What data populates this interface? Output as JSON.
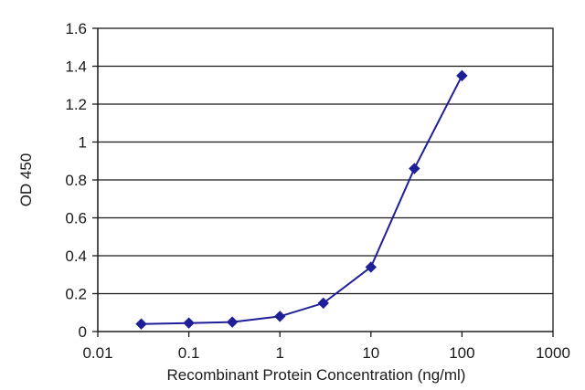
{
  "chart_data": {
    "type": "line",
    "xlabel": "Recombinant Protein Concentration (ng/ml)",
    "ylabel": "OD 450",
    "xscale": "log",
    "xlim": [
      0.01,
      1000
    ],
    "ylim": [
      0,
      1.6
    ],
    "x_ticks": [
      0.01,
      0.1,
      1,
      10,
      100,
      1000
    ],
    "x_tick_labels": [
      "0.01",
      "0.1",
      "1",
      "10",
      "100",
      "1000"
    ],
    "y_ticks": [
      0,
      0.2,
      0.4,
      0.6,
      0.8,
      1,
      1.2,
      1.4,
      1.6
    ],
    "y_tick_labels": [
      "0",
      "0.2",
      "0.4",
      "0.6",
      "0.8",
      "1",
      "1.2",
      "1.4",
      "1.6"
    ],
    "grid": "horizontal",
    "legend": "none",
    "series": [
      {
        "color": "#1f1f9a",
        "marker": "diamond",
        "x": [
          0.03,
          0.1,
          0.3,
          1,
          3,
          10,
          30,
          100
        ],
        "y": [
          0.04,
          0.045,
          0.05,
          0.08,
          0.15,
          0.34,
          0.86,
          1.35
        ]
      }
    ]
  }
}
